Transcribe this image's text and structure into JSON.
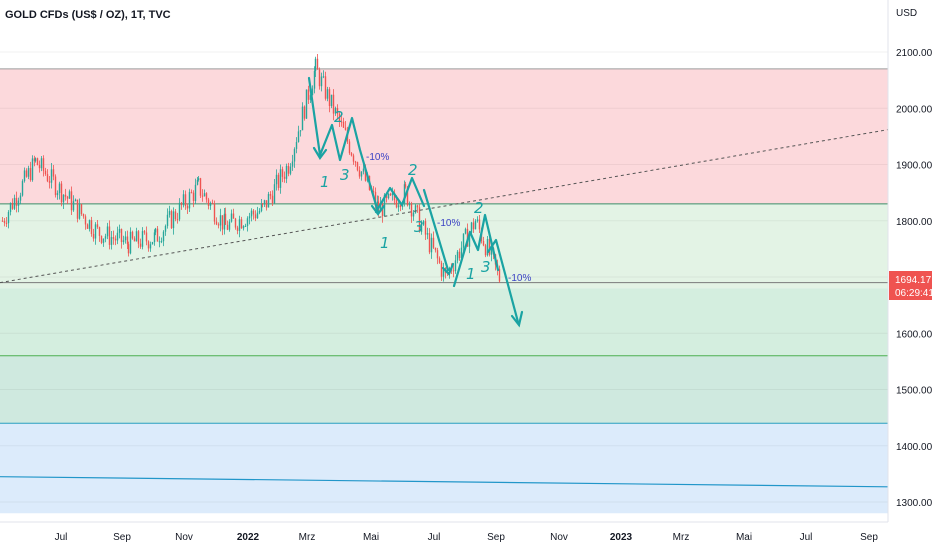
{
  "header": {
    "title": "GOLD CFDs (US$ / OZ), 1T, TVC"
  },
  "price_axis": {
    "currency": "USD",
    "ticks": [
      "2100.00",
      "2000.00",
      "1900.00",
      "1800.00",
      "1700.00",
      "1600.00",
      "1500.00",
      "1400.00",
      "1300.00"
    ],
    "current_price": "1694.17",
    "countdown": "06:29:41"
  },
  "time_axis": {
    "labels": [
      {
        "text": "Jul",
        "bold": false
      },
      {
        "text": "Sep",
        "bold": false
      },
      {
        "text": "Nov",
        "bold": false
      },
      {
        "text": "2022",
        "bold": true
      },
      {
        "text": "Mrz",
        "bold": false
      },
      {
        "text": "Mai",
        "bold": false
      },
      {
        "text": "Jul",
        "bold": false
      },
      {
        "text": "Sep",
        "bold": false
      },
      {
        "text": "Nov",
        "bold": false
      },
      {
        "text": "2023",
        "bold": true
      },
      {
        "text": "Mrz",
        "bold": false
      },
      {
        "text": "Mai",
        "bold": false
      },
      {
        "text": "Jul",
        "bold": false
      },
      {
        "text": "Sep",
        "bold": false
      }
    ]
  },
  "annotations": {
    "wave_labels": [
      "2",
      "1",
      "3",
      "2",
      "1",
      "3",
      "2",
      "1",
      "3"
    ],
    "pct_labels": [
      "-10%",
      "-10%",
      "-10%"
    ]
  },
  "colors": {
    "up": "#26a69a",
    "down": "#ef5350",
    "red_zone": "#fcd9dc",
    "green_zone": "#e3f3e5",
    "green_zone_2": "#d4eedf",
    "teal_zone": "#cfe9df",
    "blue_zone": "#dcebfb",
    "hand_drawn": "#1aa3a3",
    "price_tag": "#ef5350"
  },
  "chart_data": {
    "type": "candlestick",
    "title": "GOLD CFDs (US$ / OZ), 1T, TVC",
    "ylabel": "USD",
    "ylim": [
      1280,
      2180
    ],
    "y_ticks": [
      2100,
      2000,
      1900,
      1800,
      1700,
      1600,
      1500,
      1400,
      1300
    ],
    "x_ticks": [
      "Jul",
      "Sep",
      "Nov",
      "2022",
      "Mrz",
      "Mai",
      "Jul",
      "Sep",
      "Nov",
      "2023",
      "Mrz",
      "Mai",
      "Jul",
      "Sep"
    ],
    "last_price": 1694.17,
    "zones": [
      {
        "from": 1830,
        "to": 2070,
        "color": "red"
      },
      {
        "from": 1680,
        "to": 1830,
        "color": "green"
      },
      {
        "from": 1560,
        "to": 1680,
        "color": "green"
      },
      {
        "from": 1440,
        "to": 1560,
        "color": "teal"
      },
      {
        "from": 1280,
        "to": 1440,
        "color": "blue"
      }
    ],
    "horizontal_lines": [
      2070,
      1830,
      1690,
      1560,
      1440
    ],
    "trend_line": {
      "start": [
        "Jun",
        1690
      ],
      "end": [
        "Mai 2023",
        1950
      ]
    },
    "blue_line": {
      "start": [
        "Jun",
        1345
      ],
      "end": [
        "Sep 2023",
        1330
      ]
    },
    "price_path": [
      [
        "2021-06",
        1800
      ],
      [
        "2021-07",
        1905
      ],
      [
        "2021-08",
        1780
      ],
      [
        "2021-09",
        1760
      ],
      [
        "2021-10",
        1770
      ],
      [
        "2021-11",
        1860
      ],
      [
        "2021-12",
        1790
      ],
      [
        "2022-01",
        1820
      ],
      [
        "2022-02",
        1900
      ],
      [
        "2022-03",
        2070
      ],
      [
        "2022-04",
        1950
      ],
      [
        "2022-05",
        1820
      ],
      [
        "2022-06",
        1850
      ],
      [
        "2022-07",
        1700
      ],
      [
        "2022-08",
        1800
      ],
      [
        "2022-09",
        1694
      ]
    ]
  }
}
